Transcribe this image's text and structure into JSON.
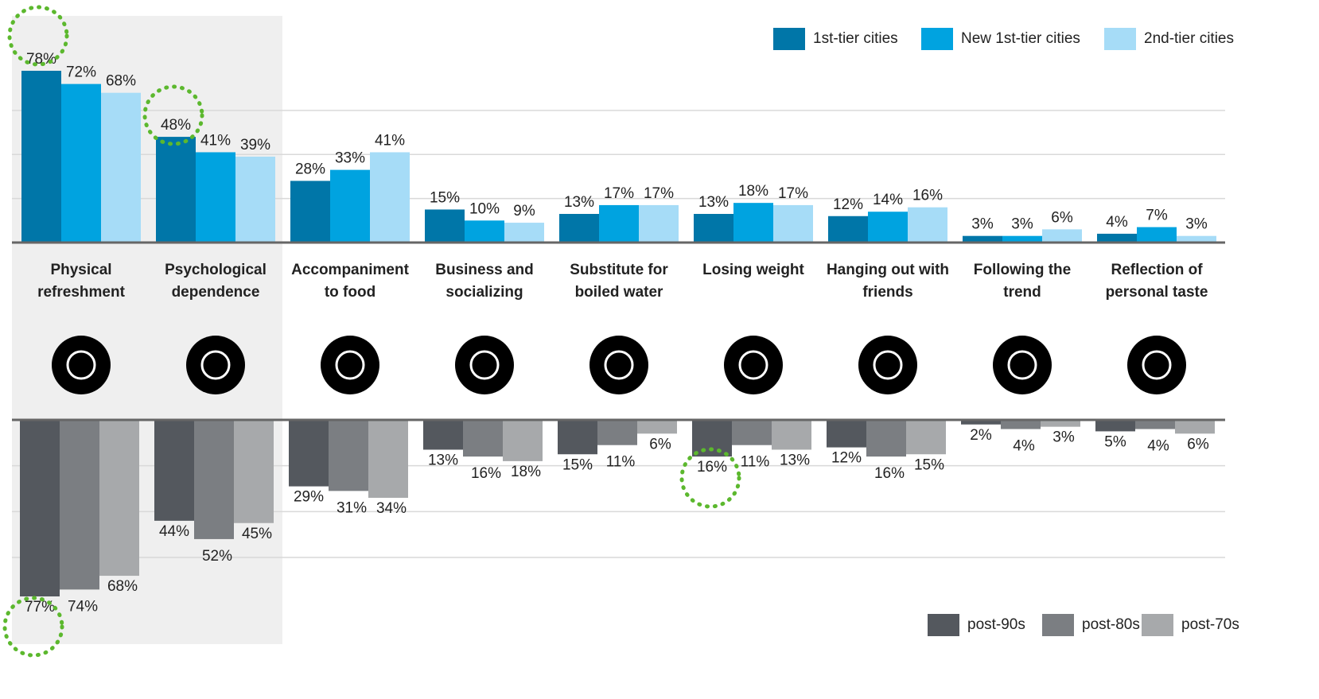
{
  "chart_data": {
    "type": "bar",
    "categories": [
      "Physical refreshment",
      "Psychological dependence",
      "Accompaniment to food",
      "Business and socializing",
      "Substitute for boiled water",
      "Losing weight",
      "Hanging out with friends",
      "Following the trend",
      "Reflection of personal taste"
    ],
    "ylim": [
      0,
      80
    ],
    "yticks": [
      0,
      20,
      40,
      60
    ],
    "y2lim": [
      0,
      80
    ],
    "y2ticks": [
      0,
      20,
      40,
      60
    ],
    "grid": true,
    "series": [
      {
        "name": "1st-tier cities",
        "color": "#0076a8",
        "axis": "y",
        "values": [
          78,
          48,
          28,
          15,
          13,
          13,
          12,
          3,
          4
        ],
        "value_labels": [
          "78%",
          "48%",
          "28%",
          "15%",
          "13%",
          "13%",
          "12%",
          "3%",
          "4%"
        ]
      },
      {
        "name": "New 1st-tier cities",
        "color": "#00a3e0",
        "axis": "y",
        "values": [
          72,
          41,
          33,
          10,
          17,
          18,
          14,
          3,
          7
        ],
        "value_labels": [
          "72%",
          "41%",
          "33%",
          "10%",
          "17%",
          "18%",
          "14%",
          "3%",
          "7%"
        ]
      },
      {
        "name": "2nd-tier cities",
        "color": "#a6dcf7",
        "axis": "y",
        "values": [
          68,
          39,
          41,
          9,
          17,
          17,
          16,
          6,
          3
        ],
        "value_labels": [
          "68%",
          "39%",
          "41%",
          "9%",
          "17%",
          "17%",
          "16%",
          "6%",
          "3%"
        ]
      },
      {
        "name": "post-90s",
        "color": "#54585e",
        "axis": "y2",
        "values": [
          77,
          44,
          29,
          13,
          15,
          16,
          12,
          2,
          5
        ],
        "value_labels": [
          "77%",
          "44%",
          "29%",
          "13%",
          "15%",
          "16%",
          "12%",
          "2%",
          "5%"
        ]
      },
      {
        "name": "post-80s",
        "color": "#7b7e82",
        "axis": "y2",
        "values": [
          74,
          52,
          31,
          16,
          11,
          11,
          16,
          4,
          4
        ],
        "value_labels": [
          "74%",
          "52%",
          "31%",
          "16%",
          "11%",
          "11%",
          "16%",
          "4%",
          "4%"
        ]
      },
      {
        "name": "post-70s",
        "color": "#a7a9ab",
        "axis": "y2",
        "values": [
          68,
          45,
          34,
          18,
          6,
          13,
          15,
          3,
          6
        ],
        "value_labels": [
          "68%",
          "45%",
          "34%",
          "18%",
          "6%",
          "13%",
          "15%",
          "3%",
          "6%"
        ]
      }
    ]
  }
}
